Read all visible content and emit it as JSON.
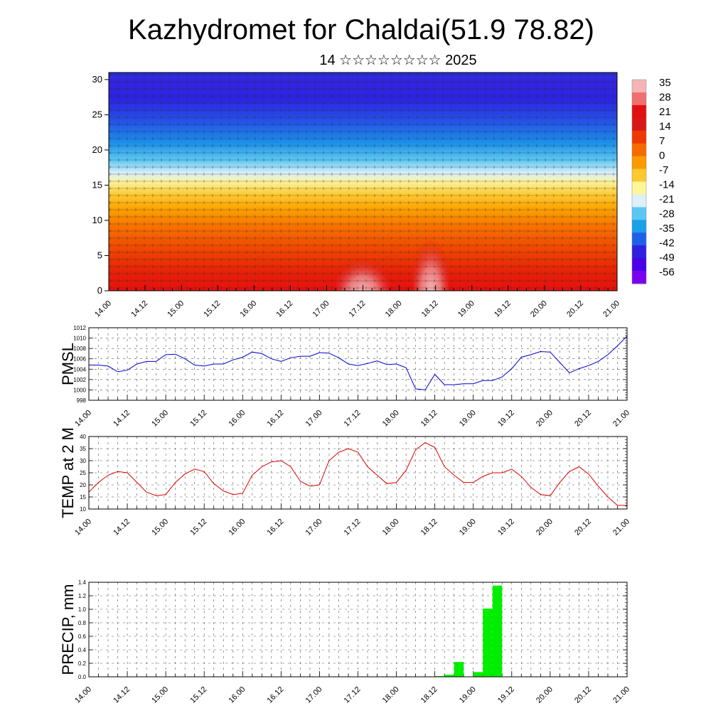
{
  "title": "Kazhydromet for Chaldai(51.9 78.82)",
  "subtitle": "14 ☆☆☆☆☆☆☆☆ 2025",
  "time_labels": [
    "14.00",
    "14.12",
    "15.00",
    "15.12",
    "16.00",
    "16.12",
    "17.00",
    "17.12",
    "18.00",
    "18.12",
    "19.00",
    "19.12",
    "20.00",
    "20.12",
    "21.00"
  ],
  "colors": {
    "pmsl_line": "#0000cc",
    "temp_line": "#dd0000",
    "precip_bar": "#00ee00",
    "grid": "#555555"
  },
  "chart_data": [
    {
      "type": "heatmap",
      "name": "upper-air-temperature-cross-section",
      "ylim": [
        0,
        31
      ],
      "yticks": [
        0,
        5,
        10,
        15,
        20,
        25,
        30
      ],
      "colorbar": {
        "labels": [
          "35",
          "28",
          "21",
          "14",
          "7",
          "0",
          "-7",
          "-14",
          "-21",
          "-28",
          "-35",
          "-42",
          "-49",
          "-56"
        ],
        "colors": [
          "#f5b5b5",
          "#f07070",
          "#e01010",
          "#d81818",
          "#ee3a00",
          "#f76a00",
          "#fb9b00",
          "#fdc830",
          "#fef69a",
          "#ddf0fa",
          "#5cc8f2",
          "#1aa0e8",
          "#2060e8",
          "#3020e0",
          "#4a00e8",
          "#7a00f0"
        ]
      }
    },
    {
      "type": "line",
      "name": "PMSL",
      "ylabel": "PMSL",
      "ylim": [
        998,
        1012
      ],
      "yticks": [
        "998",
        "1000",
        "1002",
        "1004",
        "1006",
        "1008",
        "1010",
        "1012"
      ],
      "x": [
        0,
        3,
        6,
        9,
        12,
        15,
        18,
        21,
        24,
        27,
        30,
        33,
        36,
        39,
        42,
        45,
        48,
        51,
        54,
        57,
        60,
        63,
        66,
        69,
        72,
        75,
        78,
        81,
        84,
        87,
        90,
        93,
        96,
        99,
        102,
        105,
        108,
        111,
        114,
        117,
        120,
        123,
        126,
        129,
        132,
        135,
        138,
        141,
        144,
        147,
        150,
        153,
        156,
        159,
        162,
        165,
        168
      ],
      "values": [
        1004.8,
        1004.8,
        1004.6,
        1003.5,
        1003.8,
        1005.0,
        1005.5,
        1005.5,
        1006.8,
        1006.9,
        1006.0,
        1004.8,
        1004.6,
        1005.0,
        1005.0,
        1005.8,
        1006.3,
        1007.3,
        1007.0,
        1006.0,
        1005.5,
        1006.2,
        1006.5,
        1006.5,
        1007.2,
        1007.1,
        1006.2,
        1005.0,
        1004.7,
        1005.1,
        1005.6,
        1004.9,
        1005.0,
        1004.3,
        1000.2,
        1000.0,
        1003.0,
        1001.0,
        1001.0,
        1001.2,
        1001.2,
        1001.8,
        1001.8,
        1002.5,
        1004.1,
        1006.3,
        1006.8,
        1007.4,
        1007.3,
        1005.3,
        1003.3,
        1004.1,
        1004.7,
        1005.5,
        1006.8,
        1008.5,
        1010.4
      ]
    },
    {
      "type": "line",
      "name": "TEMP at 2 M",
      "ylabel": "TEMP at 2 M",
      "ylim": [
        10,
        40
      ],
      "yticks": [
        "10",
        "15",
        "20",
        "25",
        "30",
        "35",
        "40"
      ],
      "x": [
        0,
        3,
        6,
        9,
        12,
        15,
        18,
        21,
        24,
        27,
        30,
        33,
        36,
        39,
        42,
        45,
        48,
        51,
        54,
        57,
        60,
        63,
        66,
        69,
        72,
        75,
        78,
        81,
        84,
        87,
        90,
        93,
        96,
        99,
        102,
        105,
        108,
        111,
        114,
        117,
        120,
        123,
        126,
        129,
        132,
        135,
        138,
        141,
        144,
        147,
        150,
        153,
        156,
        159,
        162,
        165,
        168
      ],
      "values": [
        17,
        21,
        24,
        25.5,
        25,
        21,
        17,
        15.5,
        16,
        21,
        24.5,
        26.5,
        25.5,
        20.5,
        17.5,
        16,
        16.5,
        24,
        27.5,
        29.5,
        30,
        27.5,
        21.5,
        19.5,
        20,
        30,
        33.5,
        35,
        33.5,
        27.5,
        24,
        20.5,
        21,
        26,
        34.5,
        37.5,
        35.5,
        27.5,
        24,
        21,
        21,
        23.5,
        25,
        25,
        26.5,
        23.5,
        19,
        16,
        15.5,
        21,
        25.5,
        27.5,
        24.5,
        19.5,
        15,
        11.5,
        11.5
      ]
    },
    {
      "type": "bar",
      "name": "PRECIP, mm",
      "ylabel": "PRECIP, mm",
      "ylim": [
        0,
        1.4
      ],
      "yticks": [
        "0.0",
        "0.2",
        "0.4",
        "0.6",
        "0.8",
        "1.0",
        "1.2",
        "1.4"
      ],
      "x": [
        108,
        111,
        114,
        117,
        120,
        123,
        126,
        129
      ],
      "values": [
        0.01,
        0.03,
        0.22,
        0.0,
        0.07,
        1.01,
        1.35,
        0.0
      ]
    }
  ]
}
